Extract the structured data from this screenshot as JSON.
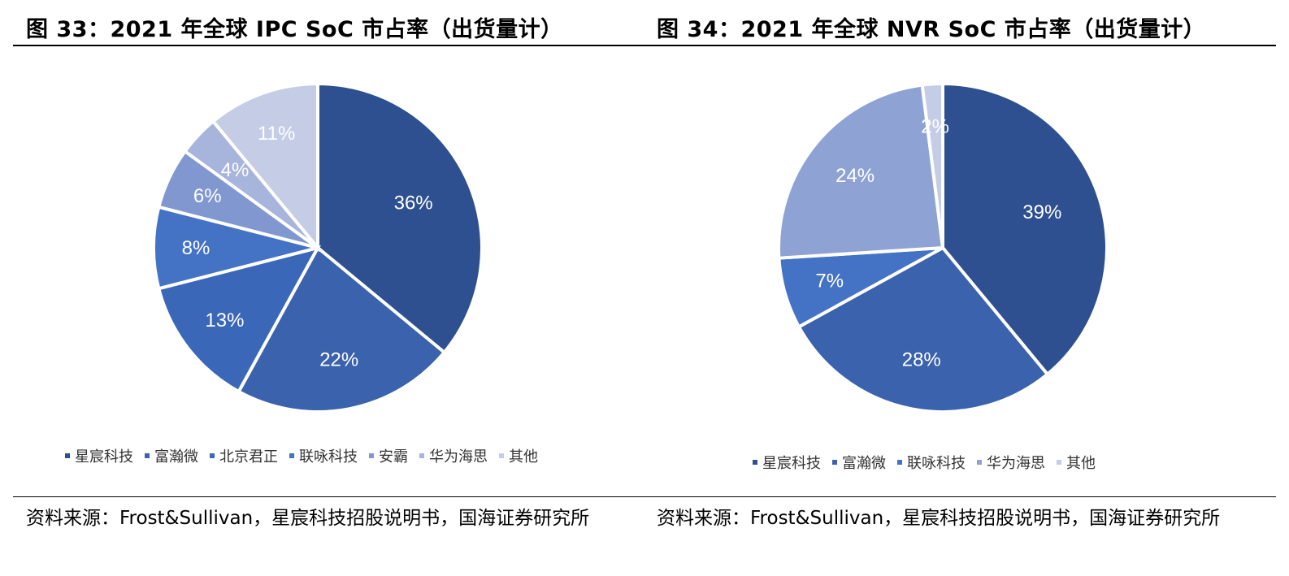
{
  "colors": {
    "c1": "#2e5090",
    "c2": "#3a62ad",
    "c3": "#4472c4",
    "c4": "#4472c4",
    "c5": "#8a9fd4",
    "c6": "#a7b4db",
    "c7": "#c5cce6",
    "nvr4": "#8fa2d4",
    "nvr5": "#c5cce6"
  },
  "left": {
    "title": "图 33：2021 年全球 IPC SoC 市占率（出货量计）",
    "source": "资料来源：Frost&Sullivan，星宸科技招股说明书，国海证券研究所",
    "chart_data": {
      "type": "pie",
      "title": "",
      "categories": [
        "星宸科技",
        "富瀚微",
        "北京君正",
        "联咏科技",
        "安霸",
        "华为海思",
        "其他"
      ],
      "values": [
        36,
        22,
        13,
        8,
        6,
        4,
        11
      ],
      "labels": [
        "36%",
        "22%",
        "13%",
        "8%",
        "6%",
        "4%",
        "11%"
      ],
      "legend_position": "bottom",
      "slice_colors": [
        "#2e5090",
        "#3a62ad",
        "#3b67b8",
        "#4472c4",
        "#8197cf",
        "#a7b4db",
        "#c5cce6"
      ]
    }
  },
  "right": {
    "title": "图 34：2021 年全球 NVR SoC 市占率（出货量计）",
    "source": "资料来源：Frost&Sullivan，星宸科技招股说明书，国海证券研究所",
    "chart_data": {
      "type": "pie",
      "title": "",
      "categories": [
        "星宸科技",
        "富瀚微",
        "联咏科技",
        "华为海思",
        "其他"
      ],
      "values": [
        39,
        28,
        7,
        24,
        2
      ],
      "labels": [
        "39%",
        "28%",
        "7%",
        "24%",
        "2%"
      ],
      "legend_position": "bottom",
      "slice_colors": [
        "#2e5090",
        "#3a62ad",
        "#4472c4",
        "#8fa2d4",
        "#c5cce6"
      ]
    }
  }
}
